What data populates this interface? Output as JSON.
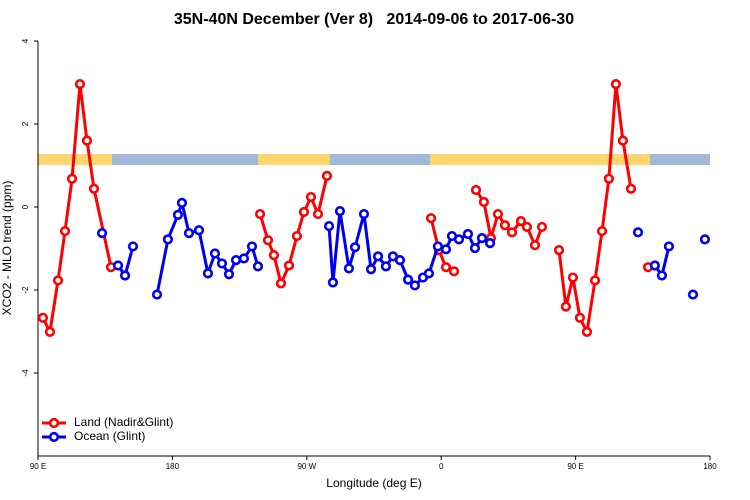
{
  "chart_data": {
    "type": "line",
    "title": "35N-40N December (Ver 8)   2014-09-06 to 2017-06-30",
    "x_label": "Longitude (deg E)",
    "y_label": "XCO2 - MLO trend (ppm)",
    "xlim": [
      90,
      540
    ],
    "xticks": [
      {
        "value": 90,
        "label": "90 E"
      },
      {
        "value": 180,
        "label": "180"
      },
      {
        "value": 270,
        "label": "90 W"
      },
      {
        "value": 360,
        "label": "0"
      },
      {
        "value": 450,
        "label": "90 E"
      },
      {
        "value": 540,
        "label": "180"
      }
    ],
    "ylim": [
      -6,
      4
    ],
    "yticks": [
      4,
      2,
      0,
      -2,
      -4
    ],
    "legend": "bottom-left",
    "series": [
      {
        "name": "Land (Nadir&Glint)",
        "color": "#ff0000",
        "x": [
          93.3,
          98.0,
          103.4,
          108.1,
          112.8,
          118.1,
          122.8,
          127.5,
          138.9,
          null,
          238.7,
          244.0,
          248.0,
          252.7,
          258.1,
          263.4,
          268.1,
          272.8,
          277.5,
          283.5,
          null,
          353.2,
          358.5,
          363.2,
          368.6,
          null,
          383.3,
          388.6,
          393.3,
          398.0,
          402.7,
          407.4,
          413.4,
          417.4,
          422.8,
          427.5,
          null,
          438.9,
          443.5,
          448.2,
          452.9,
          457.6,
          463.0,
          467.7,
          472.3,
          477.0,
          481.7,
          487.1,
          null,
          498.5
        ],
        "values": [
          -2.67,
          -3.01,
          -1.77,
          -0.58,
          0.68,
          2.96,
          1.6,
          0.44,
          -1.45,
          null,
          -0.17,
          -0.8,
          -1.16,
          -1.84,
          -1.41,
          -0.7,
          -0.12,
          0.24,
          -0.17,
          0.75,
          null,
          -0.27,
          -1.04,
          -1.45,
          -1.55,
          null,
          0.41,
          0.12,
          -0.75,
          -0.17,
          -0.44,
          -0.61,
          -0.34,
          -0.48,
          -0.92,
          -0.48,
          null,
          -1.04,
          -2.4,
          -1.7,
          -2.67,
          -3.01,
          -1.77,
          -0.58,
          0.68,
          2.96,
          1.6,
          0.44,
          null,
          -1.45
        ]
      },
      {
        "name": "Ocean (Glint)",
        "color": "#0000ee",
        "x": [
          132.9,
          null,
          143.6,
          148.3,
          153.6,
          null,
          169.7,
          177.0,
          183.7,
          186.4,
          191.1,
          197.8,
          203.8,
          208.5,
          213.2,
          217.9,
          222.6,
          227.9,
          233.3,
          237.3,
          null,
          284.9,
          287.5,
          292.2,
          298.2,
          302.3,
          308.3,
          313.0,
          317.7,
          323.0,
          327.7,
          332.4,
          337.8,
          342.4,
          347.8,
          351.8,
          357.8,
          363.2,
          367.2,
          371.9,
          377.9,
          382.6,
          387.3,
          392.7,
          null,
          491.8,
          null,
          503.1,
          507.8,
          512.5,
          null,
          528.6,
          null,
          536.6
        ],
        "values": [
          -0.63,
          null,
          -1.41,
          -1.65,
          -0.95,
          null,
          -2.11,
          -0.78,
          -0.19,
          0.1,
          -0.63,
          -0.56,
          -1.6,
          -1.12,
          -1.36,
          -1.62,
          -1.28,
          -1.24,
          -0.95,
          -1.43,
          null,
          -0.46,
          -1.82,
          -0.1,
          -1.48,
          -0.97,
          -0.17,
          -1.5,
          -1.19,
          -1.43,
          -1.19,
          -1.28,
          -1.75,
          -1.89,
          -1.7,
          -1.6,
          -0.95,
          -1.02,
          -0.7,
          -0.78,
          -0.65,
          -0.99,
          -0.75,
          -0.87,
          null,
          -0.61,
          null,
          -1.41,
          -1.65,
          -0.95,
          null,
          -2.11,
          null,
          -0.78
        ]
      }
    ]
  }
}
